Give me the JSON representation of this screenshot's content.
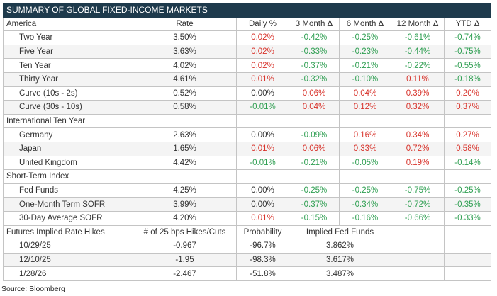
{
  "title": "SUMMARY OF GLOBAL FIXED-INCOME MARKETS",
  "positive_color": "#d8342c",
  "negative_color": "#2f9f52",
  "sections": [
    {
      "name": "America",
      "colored": true,
      "columns": [
        "Rate",
        "Daily %",
        "3 Month Δ",
        "6 Month Δ",
        "12 Month Δ",
        "YTD Δ"
      ],
      "rows": [
        {
          "label": "Two Year",
          "cells": [
            "3.50%",
            "0.02%",
            "-0.42%",
            "-0.25%",
            "-0.61%",
            "-0.74%"
          ]
        },
        {
          "label": "Five Year",
          "cells": [
            "3.63%",
            "0.02%",
            "-0.33%",
            "-0.23%",
            "-0.44%",
            "-0.75%"
          ]
        },
        {
          "label": "Ten Year",
          "cells": [
            "4.02%",
            "0.02%",
            "-0.37%",
            "-0.21%",
            "-0.22%",
            "-0.55%"
          ]
        },
        {
          "label": "Thirty Year",
          "cells": [
            "4.61%",
            "0.01%",
            "-0.32%",
            "-0.10%",
            "0.11%",
            "-0.18%"
          ]
        },
        {
          "label": "Curve (10s - 2s)",
          "cells": [
            "0.52%",
            "0.00%",
            "0.06%",
            "0.04%",
            "0.39%",
            "0.20%"
          ]
        },
        {
          "label": "Curve (30s - 10s)",
          "cells": [
            "0.58%",
            "-0.01%",
            "0.04%",
            "0.12%",
            "0.32%",
            "0.37%"
          ]
        }
      ]
    },
    {
      "name": "International Ten Year",
      "colored": true,
      "rows": [
        {
          "label": "Germany",
          "cells": [
            "2.63%",
            "0.00%",
            "-0.09%",
            "0.16%",
            "0.34%",
            "0.27%"
          ]
        },
        {
          "label": "Japan",
          "cells": [
            "1.65%",
            "0.01%",
            "0.06%",
            "0.33%",
            "0.72%",
            "0.58%"
          ]
        },
        {
          "label": "United Kingdom",
          "cells": [
            "4.42%",
            "-0.01%",
            "-0.21%",
            "-0.05%",
            "0.19%",
            "-0.14%"
          ]
        }
      ]
    },
    {
      "name": "Short-Term Index",
      "colored": true,
      "rows": [
        {
          "label": "Fed Funds",
          "cells": [
            "4.25%",
            "0.00%",
            "-0.25%",
            "-0.25%",
            "-0.75%",
            "-0.25%"
          ]
        },
        {
          "label": "One-Month Term SOFR",
          "cells": [
            "3.99%",
            "0.00%",
            "-0.37%",
            "-0.34%",
            "-0.72%",
            "-0.35%"
          ]
        },
        {
          "label": "30-Day Average SOFR",
          "cells": [
            "4.20%",
            "0.01%",
            "-0.15%",
            "-0.16%",
            "-0.66%",
            "-0.33%"
          ]
        }
      ]
    },
    {
      "name": "Futures Implied Rate Hikes",
      "colored": false,
      "columns": [
        "# of 25 bps Hikes/Cuts",
        "Probability",
        "Implied Fed Funds"
      ],
      "rows": [
        {
          "label": "10/29/25",
          "cells": [
            "-0.967",
            "-96.7%",
            "3.862%"
          ]
        },
        {
          "label": "12/10/25",
          "cells": [
            "-1.95",
            "-98.3%",
            "3.617%"
          ]
        },
        {
          "label": "1/28/26",
          "cells": [
            "-2.467",
            "-51.8%",
            "3.487%"
          ]
        }
      ]
    }
  ],
  "source": "Source: Bloomberg"
}
